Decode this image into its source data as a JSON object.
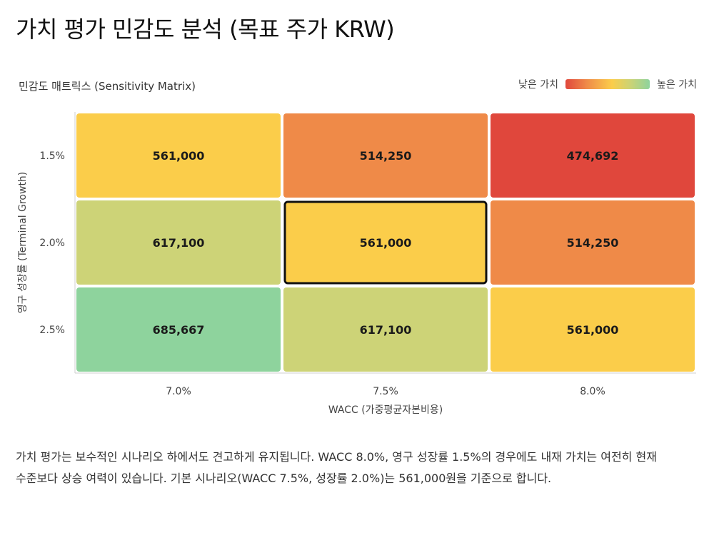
{
  "title": "가치 평가 민감도 분석 (목표 주가 KRW)",
  "subtitle": "민감도 매트릭스 (Sensitivity Matrix)",
  "legend": {
    "low_label": "낮은 가치",
    "high_label": "높은 가치",
    "colors": [
      "#e0473c",
      "#ef8a48",
      "#fbcd4a",
      "#c9d377",
      "#8ed39d"
    ]
  },
  "chart_data": {
    "type": "heatmap",
    "xlabel": "WACC (가중평균자본비용)",
    "ylabel": "영구 성장률 (Terminal Growth)",
    "x_categories": [
      "7.0%",
      "7.5%",
      "8.0%"
    ],
    "y_categories": [
      "1.5%",
      "2.0%",
      "2.5%"
    ],
    "values": [
      [
        561000,
        514250,
        474692
      ],
      [
        617100,
        561000,
        514250
      ],
      [
        685667,
        617100,
        561000
      ]
    ],
    "value_labels": [
      [
        "561,000",
        "514,250",
        "474,692"
      ],
      [
        "617,100",
        "561,000",
        "514,250"
      ],
      [
        "685,667",
        "617,100",
        "561,000"
      ]
    ],
    "cell_colors": [
      [
        "#fbcd4a",
        "#ef8a48",
        "#e0473c"
      ],
      [
        "#cdd377",
        "#fbcd4a",
        "#ef8a48"
      ],
      [
        "#8ed39d",
        "#cdd377",
        "#fbcd4a"
      ]
    ],
    "highlighted_cell": {
      "row": 1,
      "col": 1
    }
  },
  "narrative": "가치 평가는 보수적인 시나리오 하에서도 견고하게 유지됩니다. WACC 8.0%, 영구 성장률 1.5%의 경우에도 내재 가치는 여전히 현재 수준보다 상승 여력이 있습니다. 기본 시나리오(WACC 7.5%, 성장률 2.0%)는 561,000원을 기준으로 합니다."
}
